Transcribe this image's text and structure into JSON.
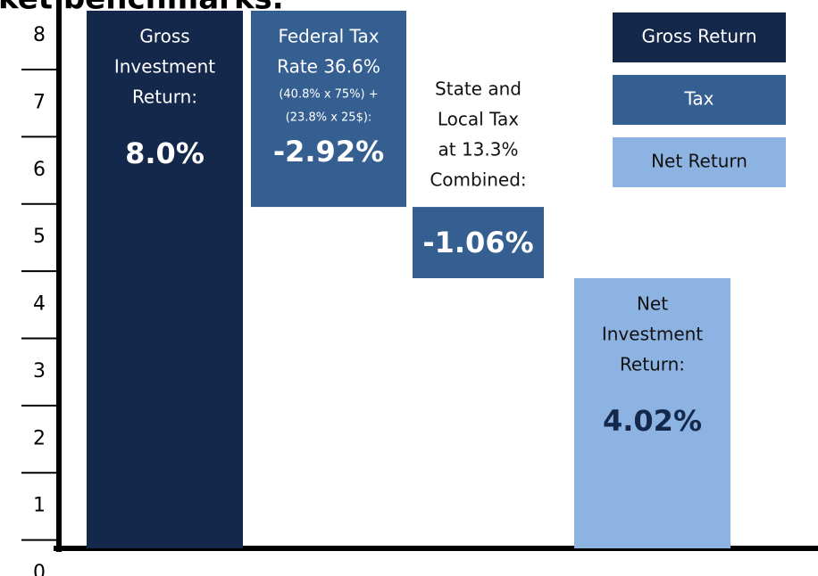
{
  "chart_data": {
    "type": "waterfall",
    "title": "ket benchmarks.",
    "categories": [
      [
        "Gross",
        "Investment",
        "Return:"
      ],
      [
        "Federal Tax",
        "Rate 36.6%"
      ],
      [
        "State and",
        "Local Tax",
        "at 13.3%",
        "Combined:"
      ],
      [
        "Net",
        "Investment",
        "Return:"
      ]
    ],
    "category_notes": {
      "1": [
        "(40.8% x 75%) +",
        "(23.8% x 25$):"
      ]
    },
    "values": [
      8.0,
      -2.92,
      -1.06,
      4.02
    ],
    "value_labels": [
      "8.0%",
      "-2.92%",
      "-1.06%",
      "4.02%"
    ],
    "measure": [
      "absolute",
      "relative",
      "relative",
      "total"
    ],
    "colors": [
      "#14284b",
      "#355f91",
      "#355f91",
      "#8db3e2"
    ],
    "legend": [
      {
        "name": "Gross Return",
        "color": "#14284b"
      },
      {
        "name": "Tax",
        "color": "#355f91"
      },
      {
        "name": "Net Return",
        "color": "#8db3e2"
      }
    ],
    "ylim": [
      0,
      8
    ],
    "yticks": [
      0,
      1,
      2,
      3,
      4,
      5,
      6,
      7,
      8
    ]
  }
}
